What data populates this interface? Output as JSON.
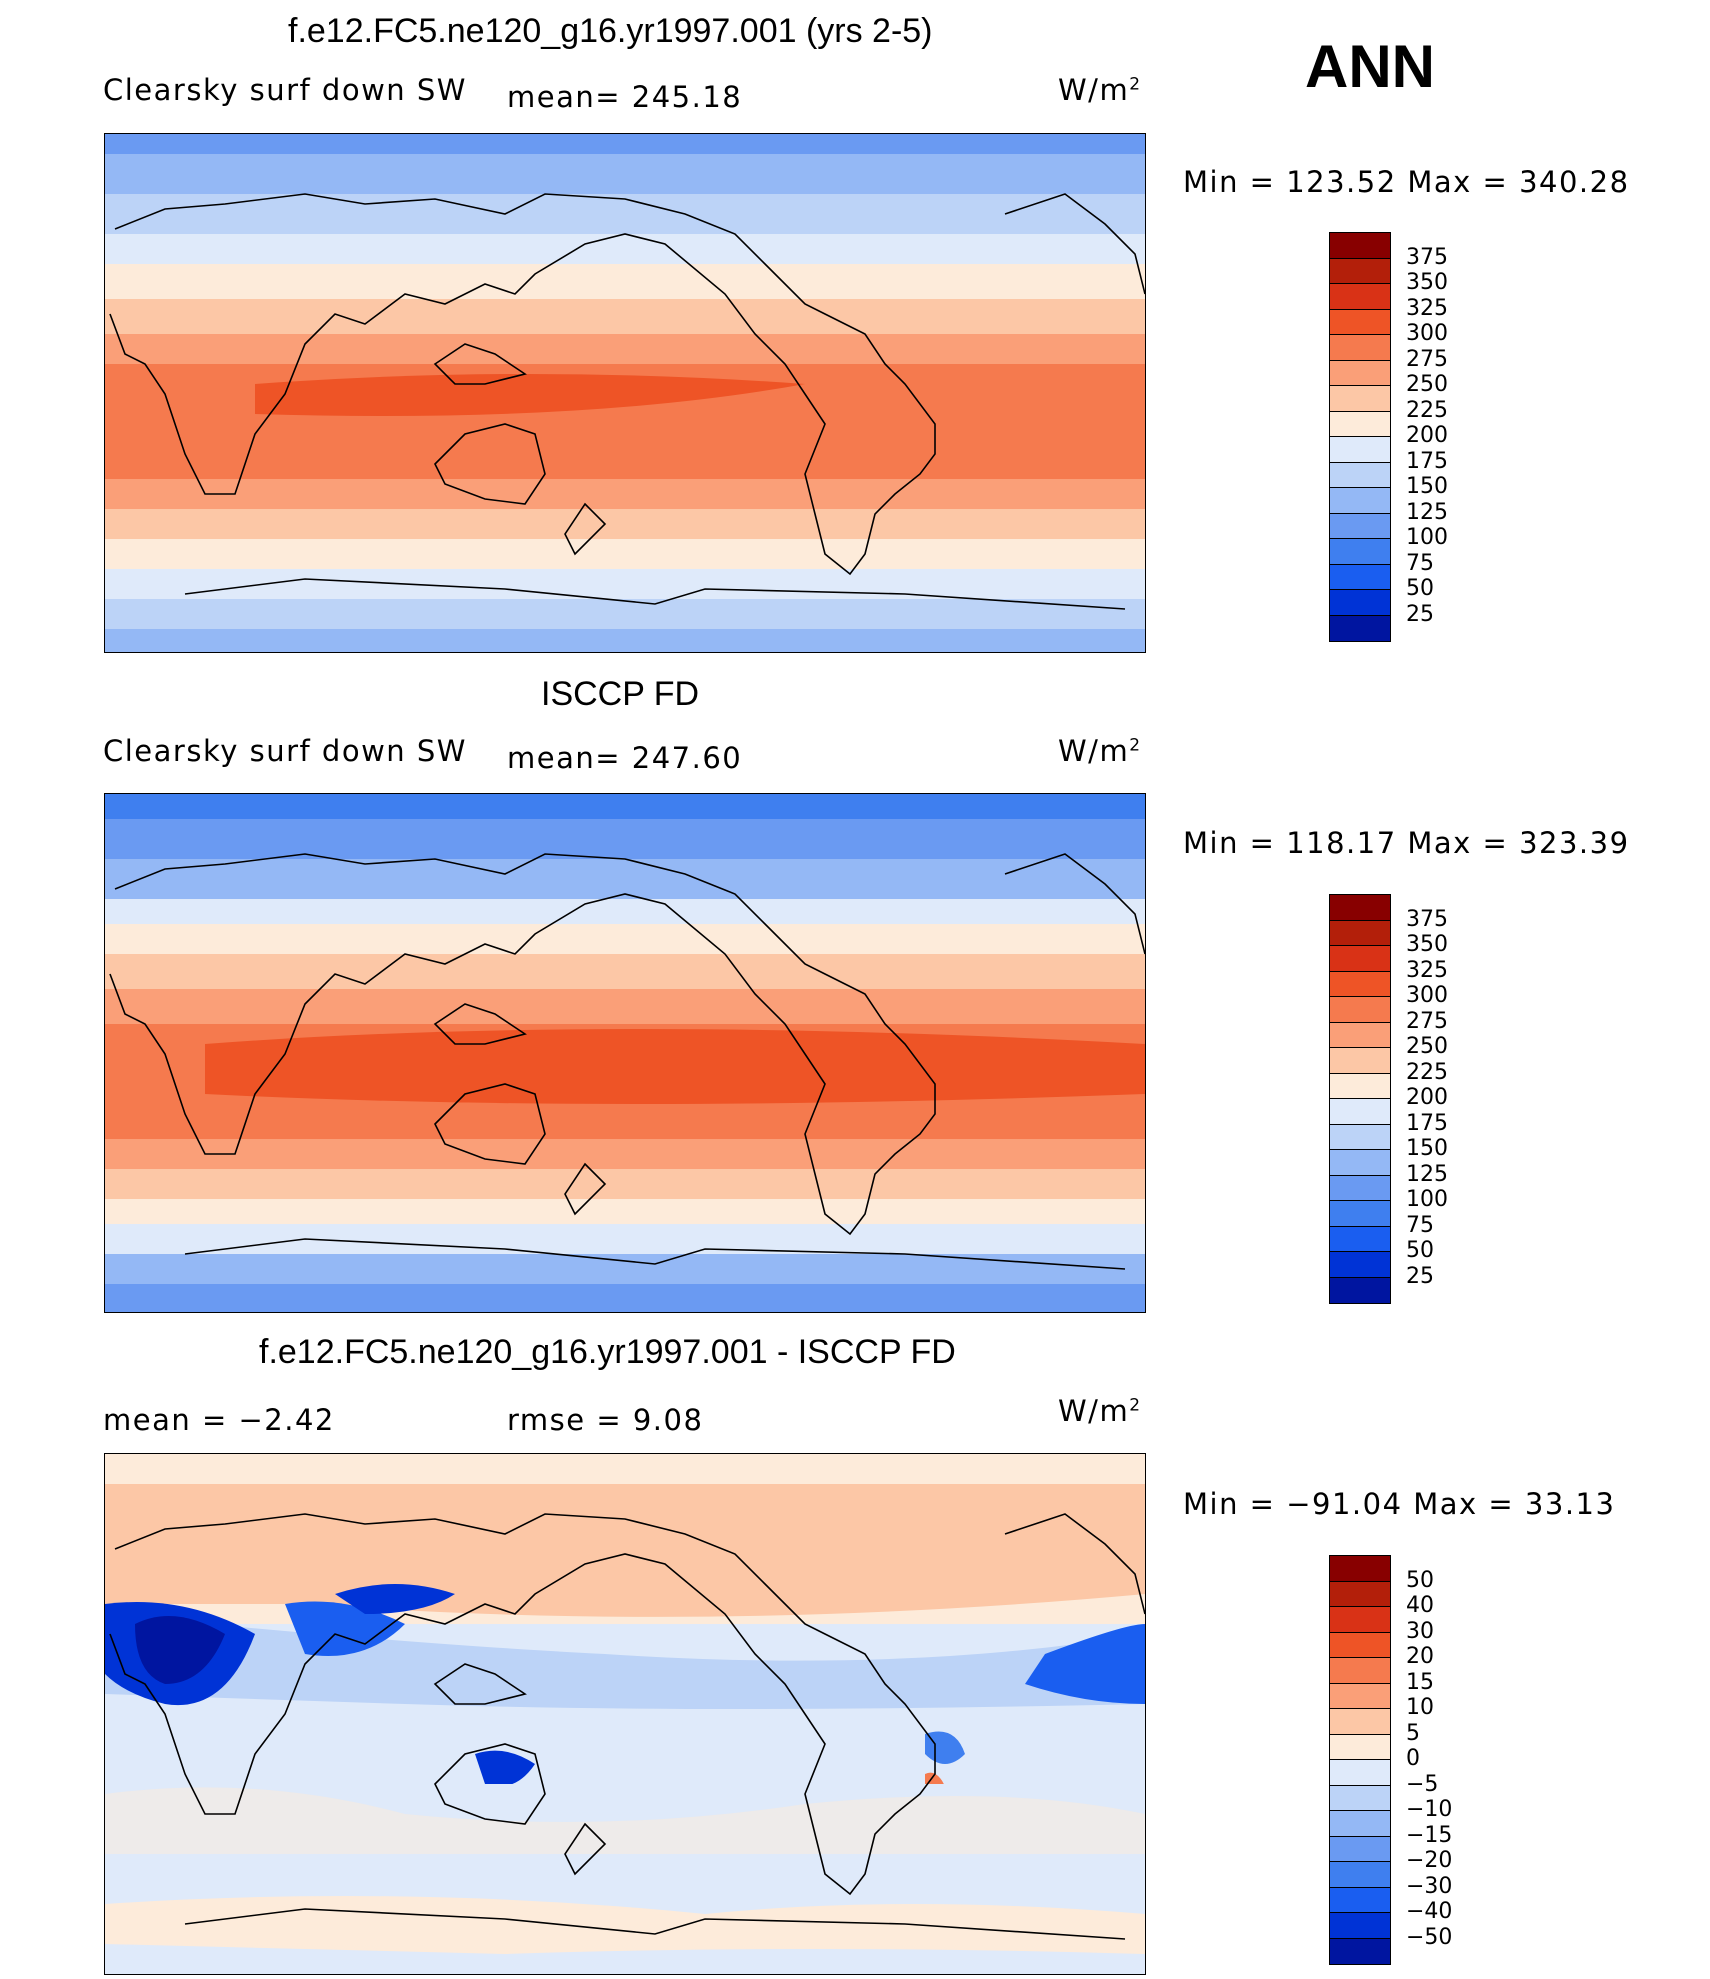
{
  "season": "ANN",
  "colors": {
    "abs_scale": [
      "#ffffff"
    ],
    "abs": [
      "#00007f",
      "#0015a0",
      "#0033d6",
      "#1a5ef0",
      "#3f7fef",
      "#6a9af2",
      "#94b8f5",
      "#bcd3f7",
      "#dfeafa",
      "#fdebda",
      "#fcc7a6",
      "#fa9f78",
      "#f57a4e",
      "#ee5426",
      "#d93216",
      "#b31f0a",
      "#880000"
    ],
    "diff": [
      "#00007f",
      "#0015a0",
      "#0033d6",
      "#1a5ef0",
      "#3f7fef",
      "#6a9af2",
      "#94b8f5",
      "#bcd3f7",
      "#dfeafa",
      "#fdebda",
      "#fcc7a6",
      "#fa9f78",
      "#f57a4e",
      "#ee5426",
      "#d93216",
      "#b31f0a",
      "#880000"
    ]
  },
  "panels": [
    {
      "title": "f.e12.FC5.ne120_g16.yr1997.001 (yrs 2-5)",
      "variable": "Clearsky surf down SW",
      "stat": "mean=  245.18",
      "units": "W/m",
      "units_exp": "2",
      "minmax": "Min  =  123.52  Max  =  340.28",
      "ticks": [
        "375",
        "350",
        "325",
        "300",
        "275",
        "250",
        "225",
        "200",
        "175",
        "150",
        "125",
        "100",
        "75",
        "50",
        "25"
      ]
    },
    {
      "title": "ISCCP FD",
      "variable": "Clearsky surf down SW",
      "stat": "mean=  247.60",
      "units": "W/m",
      "units_exp": "2",
      "minmax": "Min  =  118.17  Max  =  323.39",
      "ticks": [
        "375",
        "350",
        "325",
        "300",
        "275",
        "250",
        "225",
        "200",
        "175",
        "150",
        "125",
        "100",
        "75",
        "50",
        "25"
      ]
    },
    {
      "title": "f.e12.FC5.ne120_g16.yr1997.001 - ISCCP FD",
      "variable": "mean  =     −2.42",
      "stat": "rmse  =      9.08",
      "units": "W/m",
      "units_exp": "2",
      "minmax": "Min  =  −91.04  Max  =    33.13",
      "ticks": [
        "50",
        "40",
        "30",
        "20",
        "15",
        "10",
        "5",
        "0",
        "−5",
        "−10",
        "−15",
        "−20",
        "−30",
        "−40",
        "−50"
      ]
    }
  ]
}
